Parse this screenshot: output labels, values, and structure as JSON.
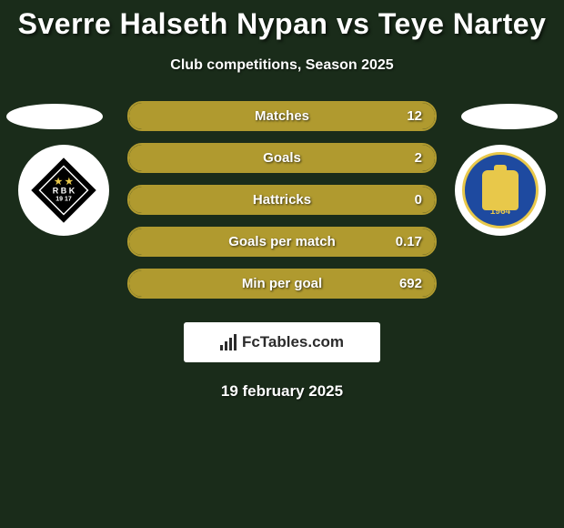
{
  "header": {
    "title": "Sverre Halseth Nypan vs Teye Nartey",
    "subtitle": "Club competitions, Season 2025"
  },
  "teams": {
    "left": {
      "flag_colors": [
        "#ffffff",
        "#ffffff",
        "#ffffff"
      ],
      "logo_name": "rosenborg-badge",
      "logo_bg": "#ffffff",
      "badge_text_top": "★ ★",
      "badge_text_mid": "R B K",
      "badge_text_year": "19  17"
    },
    "right": {
      "flag_colors": [
        "#ffffff",
        "#ffffff",
        "#ffffff"
      ],
      "logo_name": "brondby-badge",
      "logo_bg": "#ffffff",
      "badge_year": "1964"
    }
  },
  "stats": {
    "border_color": "#b09a2f",
    "fill_color": "#b09a2f",
    "rows": [
      {
        "label": "Matches",
        "value": "12",
        "fill_pct": 100
      },
      {
        "label": "Goals",
        "value": "2",
        "fill_pct": 100
      },
      {
        "label": "Hattricks",
        "value": "0",
        "fill_pct": 100
      },
      {
        "label": "Goals per match",
        "value": "0.17",
        "fill_pct": 100
      },
      {
        "label": "Min per goal",
        "value": "692",
        "fill_pct": 100
      }
    ]
  },
  "brand": {
    "text": "FcTables.com"
  },
  "footer": {
    "date": "19 february 2025"
  },
  "colors": {
    "page_bg": "#1a2c1a",
    "accent": "#b09a2f",
    "brondby_blue": "#1e4aa0",
    "brondby_gold": "#e8c84a"
  }
}
